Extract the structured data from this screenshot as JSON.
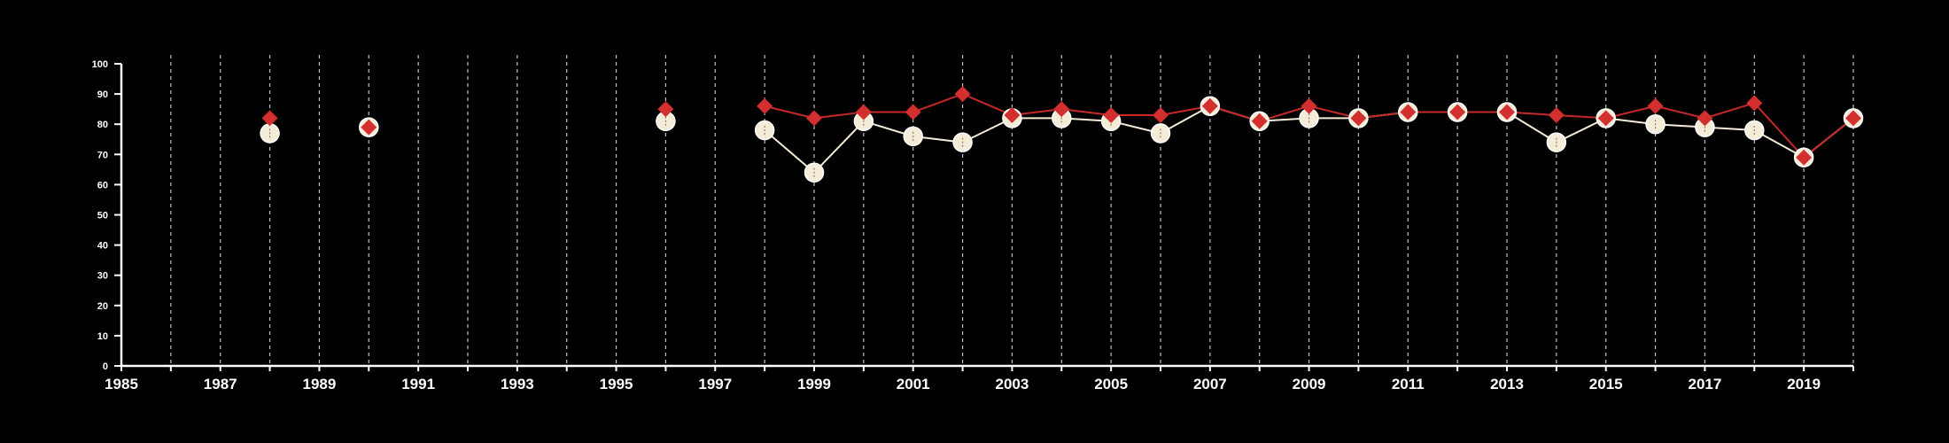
{
  "colors": {
    "background": "#000000",
    "axis": "#ffffff",
    "grid": "#bfbfbf",
    "series_a_marker": "#f5ecd7",
    "series_a_line": "#f5ecd7",
    "series_b_marker": "#d32f2f",
    "series_b_line": "#c62828"
  },
  "chart_data": {
    "type": "line",
    "title": "",
    "xlabel": "",
    "ylabel": "",
    "xlim": [
      1985,
      2020
    ],
    "ylim": [
      0,
      100
    ],
    "grid": "vertical-dashed",
    "x_ticks": [
      1985,
      1987,
      1989,
      1991,
      1993,
      1995,
      1997,
      1999,
      2001,
      2003,
      2005,
      2007,
      2009,
      2011,
      2013,
      2015,
      2017,
      2019
    ],
    "x_tick_labels": [
      "1985",
      "1987",
      "1989",
      "1991",
      "1993",
      "1995",
      "1997",
      "1999",
      "2001",
      "2003",
      "2005",
      "2007",
      "2009",
      "2011",
      "2013",
      "2015",
      "2017",
      "2019"
    ],
    "y_ticks": [
      0,
      10,
      20,
      30,
      40,
      50,
      60,
      70,
      80,
      90,
      100
    ],
    "y_tick_labels": [
      "0",
      "10",
      "20",
      "30",
      "40",
      "50",
      "60",
      "70",
      "80",
      "90",
      "100"
    ],
    "series": [
      {
        "marker": "circle",
        "color": "#f5ecd7",
        "points": [
          [
            1988,
            77
          ],
          [
            1990,
            79
          ],
          [
            1996,
            81
          ],
          [
            1998,
            78
          ],
          [
            1999,
            64
          ],
          [
            2000,
            81
          ],
          [
            2001,
            76
          ],
          [
            2002,
            74
          ],
          [
            2003,
            82
          ],
          [
            2004,
            82
          ],
          [
            2005,
            81
          ],
          [
            2006,
            77
          ],
          [
            2007,
            86
          ],
          [
            2008,
            81
          ],
          [
            2009,
            82
          ],
          [
            2010,
            82
          ],
          [
            2011,
            84
          ],
          [
            2012,
            84
          ],
          [
            2013,
            84
          ],
          [
            2014,
            74
          ],
          [
            2015,
            82
          ],
          [
            2016,
            80
          ],
          [
            2017,
            79
          ],
          [
            2018,
            78
          ],
          [
            2019,
            69
          ],
          [
            2020,
            82
          ]
        ]
      },
      {
        "marker": "diamond",
        "color": "#d32f2f",
        "points": [
          [
            1988,
            82
          ],
          [
            1990,
            79
          ],
          [
            1996,
            85
          ],
          [
            1998,
            86
          ],
          [
            1999,
            82
          ],
          [
            2000,
            84
          ],
          [
            2001,
            84
          ],
          [
            2002,
            90
          ],
          [
            2003,
            83
          ],
          [
            2004,
            85
          ],
          [
            2005,
            83
          ],
          [
            2006,
            83
          ],
          [
            2007,
            86
          ],
          [
            2008,
            81
          ],
          [
            2009,
            86
          ],
          [
            2010,
            82
          ],
          [
            2011,
            84
          ],
          [
            2012,
            84
          ],
          [
            2013,
            84
          ],
          [
            2014,
            83
          ],
          [
            2015,
            82
          ],
          [
            2016,
            86
          ],
          [
            2017,
            82
          ],
          [
            2018,
            87
          ],
          [
            2019,
            69
          ],
          [
            2020,
            82
          ]
        ]
      }
    ]
  }
}
